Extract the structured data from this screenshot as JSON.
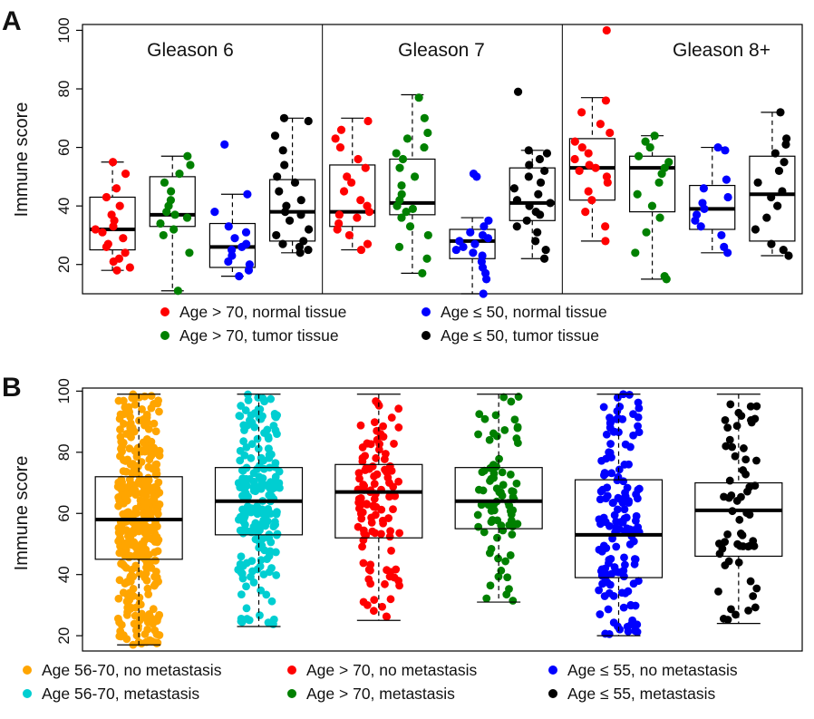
{
  "chart_data": [
    {
      "panel_label": "A",
      "type": "box",
      "ylabel": "Immune score",
      "ylim": [
        10,
        102
      ],
      "yticks": [
        20,
        40,
        60,
        80,
        100
      ],
      "groups": [
        "Gleason 6",
        "Gleason 7",
        "Gleason 8+"
      ],
      "series": [
        {
          "name": "Age > 70, normal tissue",
          "color": "#ff0000"
        },
        {
          "name": "Age ≤ 50, normal tissue",
          "color": "#0000ff"
        },
        {
          "name": "Age > 70, tumor tissue",
          "color": "#008000"
        },
        {
          "name": "Age ≤ 50, tumor tissue",
          "color": "#000000"
        }
      ],
      "legend_order": [
        0,
        1,
        2,
        3
      ],
      "boxes": [
        {
          "group": 0,
          "series": 0,
          "lower": 18,
          "q1": 25,
          "median": 32,
          "q3": 43,
          "upper": 55,
          "points": [
            18,
            19,
            21,
            22,
            24,
            26,
            27,
            29,
            31,
            32,
            33,
            35,
            37,
            40,
            43,
            46,
            51,
            55
          ]
        },
        {
          "group": 0,
          "series": 2,
          "lower": 11,
          "q1": 33,
          "median": 37,
          "q3": 50,
          "upper": 57,
          "points": [
            11,
            24,
            30,
            32,
            34,
            36,
            37,
            38,
            40,
            42,
            45,
            48,
            51,
            54,
            57
          ]
        },
        {
          "group": 0,
          "series": 1,
          "lower": 16,
          "q1": 19,
          "median": 26,
          "q3": 34,
          "upper": 44,
          "points": [
            16,
            18,
            20,
            21,
            23,
            25,
            26,
            27,
            29,
            31,
            33,
            38,
            44,
            61
          ]
        },
        {
          "group": 0,
          "series": 3,
          "lower": 24,
          "q1": 28,
          "median": 38,
          "q3": 49,
          "upper": 70,
          "points": [
            24,
            25,
            26,
            27,
            28,
            30,
            32,
            35,
            37,
            38,
            40,
            42,
            45,
            48,
            50,
            54,
            59,
            64,
            69,
            70
          ]
        },
        {
          "group": 1,
          "series": 0,
          "lower": 25,
          "q1": 33,
          "median": 38,
          "q3": 54,
          "upper": 70,
          "points": [
            25,
            27,
            30,
            32,
            34,
            36,
            37,
            38,
            40,
            42,
            45,
            48,
            50,
            53,
            56,
            60,
            63,
            66,
            69
          ]
        },
        {
          "group": 1,
          "series": 2,
          "lower": 17,
          "q1": 37,
          "median": 41,
          "q3": 56,
          "upper": 78,
          "points": [
            17,
            22,
            26,
            30,
            33,
            36,
            38,
            39,
            40,
            42,
            44,
            47,
            50,
            53,
            56,
            58,
            60,
            63,
            65,
            70,
            77
          ]
        },
        {
          "group": 1,
          "series": 1,
          "lower": 10,
          "q1": 22,
          "median": 28,
          "q3": 32,
          "upper": 36,
          "points": [
            10,
            15,
            17,
            19,
            21,
            23,
            24,
            25,
            26,
            27,
            28,
            29,
            30,
            31,
            33,
            35,
            50,
            51
          ]
        },
        {
          "group": 1,
          "series": 3,
          "lower": 22,
          "q1": 35,
          "median": 41,
          "q3": 53,
          "upper": 59,
          "points": [
            22,
            25,
            28,
            31,
            33,
            35,
            37,
            38,
            40,
            41,
            42,
            44,
            46,
            48,
            50,
            52,
            54,
            56,
            58,
            59,
            79
          ]
        },
        {
          "group": 2,
          "series": 0,
          "lower": 28,
          "q1": 42,
          "median": 53,
          "q3": 63,
          "upper": 77,
          "points": [
            28,
            33,
            38,
            42,
            45,
            48,
            50,
            52,
            53,
            54,
            56,
            58,
            60,
            62,
            65,
            68,
            72,
            76,
            100
          ]
        },
        {
          "group": 2,
          "series": 2,
          "lower": 15,
          "q1": 38,
          "median": 53,
          "q3": 57,
          "upper": 64,
          "points": [
            15,
            16,
            24,
            31,
            36,
            40,
            44,
            48,
            51,
            53,
            55,
            57,
            60,
            62,
            64
          ]
        },
        {
          "group": 2,
          "series": 1,
          "lower": 24,
          "q1": 32,
          "median": 39,
          "q3": 47,
          "upper": 60,
          "points": [
            24,
            26,
            30,
            33,
            35,
            37,
            39,
            41,
            43,
            46,
            49,
            59,
            60
          ]
        },
        {
          "group": 2,
          "series": 3,
          "lower": 23,
          "q1": 28,
          "median": 44,
          "q3": 57,
          "upper": 72,
          "points": [
            23,
            25,
            27,
            32,
            36,
            40,
            43,
            45,
            48,
            52,
            55,
            58,
            61,
            63,
            72
          ]
        }
      ]
    },
    {
      "panel_label": "B",
      "type": "box",
      "ylabel": "Immune score",
      "ylim": [
        15,
        101
      ],
      "yticks": [
        20,
        40,
        60,
        80,
        100
      ],
      "series": [
        {
          "name": "Age 56-70, no metastasis",
          "color": "#ffa500",
          "lower": 17,
          "q1": 45,
          "median": 58,
          "q3": 72,
          "upper": 99,
          "n": 380
        },
        {
          "name": "Age 56-70, metastasis",
          "color": "#00ced1",
          "lower": 23,
          "q1": 53,
          "median": 64,
          "q3": 75,
          "upper": 99,
          "n": 200
        },
        {
          "name": "Age > 70, no metastasis",
          "color": "#ff0000",
          "lower": 25,
          "q1": 52,
          "median": 67,
          "q3": 76,
          "upper": 99,
          "n": 110
        },
        {
          "name": "Age > 70, metastasis",
          "color": "#008000",
          "lower": 31,
          "q1": 55,
          "median": 64,
          "q3": 75,
          "upper": 99,
          "n": 80
        },
        {
          "name": "Age ≤ 55, no metastasis",
          "color": "#0000ff",
          "lower": 20,
          "q1": 39,
          "median": 53,
          "q3": 71,
          "upper": 99,
          "n": 150
        },
        {
          "name": "Age ≤ 55, metastasis",
          "color": "#000000",
          "lower": 24,
          "q1": 46,
          "median": 61,
          "q3": 70,
          "upper": 99,
          "n": 60
        }
      ],
      "legend_order": [
        0,
        2,
        4,
        1,
        3,
        5
      ]
    }
  ]
}
